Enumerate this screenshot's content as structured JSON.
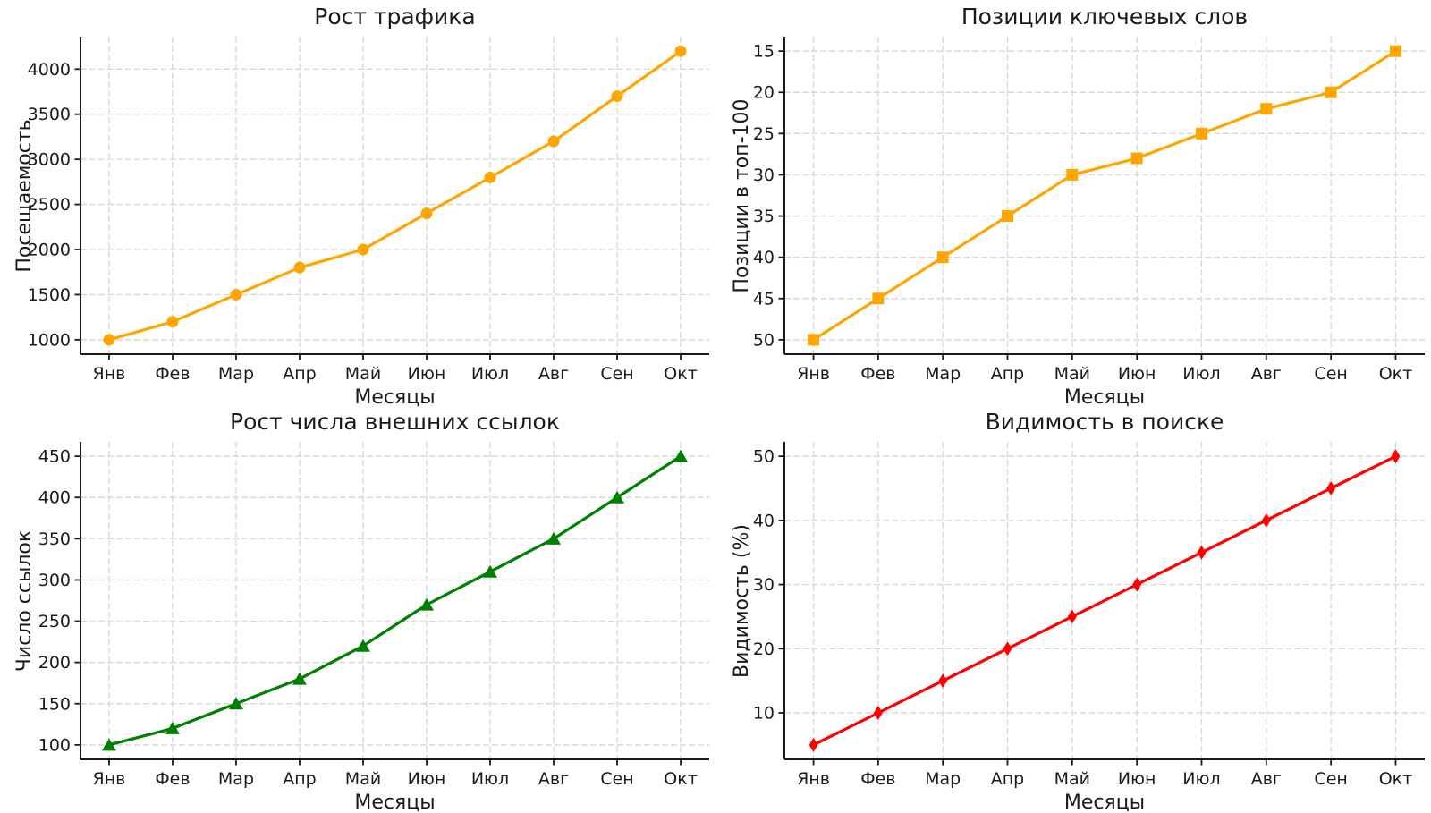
{
  "figure": {
    "background": "#ffffff",
    "grid_color": "#d9d9d9",
    "axis_color": "#1a1a1a",
    "text_color": "#1a1a1a"
  },
  "chart_data": [
    {
      "id": "traffic-growth",
      "type": "line",
      "title": "Рост трафика",
      "xlabel": "Месяцы",
      "ylabel": "Посещаемость",
      "categories": [
        "Янв",
        "Фев",
        "Мар",
        "Апр",
        "Май",
        "Июн",
        "Июл",
        "Авг",
        "Сен",
        "Окт"
      ],
      "values": [
        1000,
        1200,
        1500,
        1800,
        2000,
        2400,
        2800,
        3200,
        3700,
        4200
      ],
      "color": "#FFA500",
      "marker": "circle",
      "y_ticks": [
        1000,
        1500,
        2000,
        2500,
        3000,
        3500,
        4000
      ],
      "ylim": [
        840,
        4360
      ],
      "y_inverted": false,
      "grid": true,
      "legend": null
    },
    {
      "id": "keyword-positions",
      "type": "line",
      "title": "Позиции ключевых слов",
      "xlabel": "Месяцы",
      "ylabel": "Позиции в топ-100",
      "categories": [
        "Янв",
        "Фев",
        "Мар",
        "Апр",
        "Май",
        "Июн",
        "Июл",
        "Авг",
        "Сен",
        "Окт"
      ],
      "values": [
        50,
        45,
        40,
        35,
        30,
        28,
        25,
        22,
        20,
        15
      ],
      "color": "#FFA500",
      "marker": "square",
      "y_ticks": [
        15,
        20,
        25,
        30,
        35,
        40,
        45,
        50
      ],
      "ylim": [
        13.25,
        51.75
      ],
      "y_inverted": true,
      "grid": true,
      "legend": null
    },
    {
      "id": "backlinks-growth",
      "type": "line",
      "title": "Рост числа внешних ссылок",
      "xlabel": "Месяцы",
      "ylabel": "Число ссылок",
      "categories": [
        "Янв",
        "Фев",
        "Мар",
        "Апр",
        "Май",
        "Июн",
        "Июл",
        "Авг",
        "Сен",
        "Окт"
      ],
      "values": [
        100,
        120,
        150,
        180,
        220,
        270,
        310,
        350,
        400,
        450
      ],
      "color": "#008000",
      "marker": "triangle-up",
      "y_ticks": [
        100,
        150,
        200,
        250,
        300,
        350,
        400,
        450
      ],
      "ylim": [
        82.5,
        467.5
      ],
      "y_inverted": false,
      "grid": true,
      "legend": null
    },
    {
      "id": "search-visibility",
      "type": "line",
      "title": "Видимость в поиске",
      "xlabel": "Месяцы",
      "ylabel": "Видимость (%)",
      "categories": [
        "Янв",
        "Фев",
        "Мар",
        "Апр",
        "Май",
        "Июн",
        "Июл",
        "Авг",
        "Сен",
        "Окт"
      ],
      "values": [
        5,
        10,
        15,
        20,
        25,
        30,
        35,
        40,
        45,
        50
      ],
      "color": "#FF0000",
      "marker": "diamond-thin",
      "y_ticks": [
        10,
        20,
        30,
        40,
        50
      ],
      "ylim": [
        2.75,
        52.25
      ],
      "y_inverted": false,
      "grid": true,
      "legend": null
    }
  ]
}
